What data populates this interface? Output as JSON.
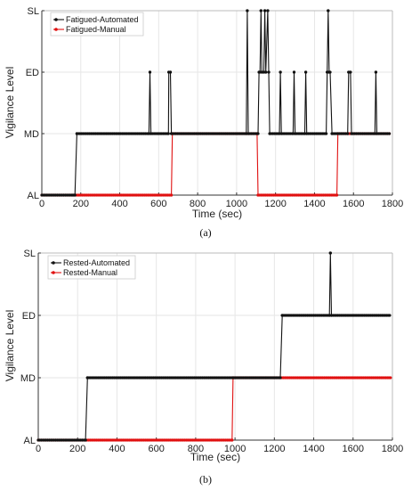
{
  "captions": [
    "(a)",
    "(b)"
  ],
  "colors": {
    "automated": "#111111",
    "manual": "#e01010",
    "grid": "#e6e6e6",
    "axis": "#333333"
  },
  "chart_data": [
    {
      "type": "line",
      "panel": "a",
      "xlabel": "Time (sec)",
      "ylabel": "Vigilance Level",
      "xlim": [
        0,
        1800
      ],
      "xticks": [
        0,
        200,
        400,
        600,
        800,
        1000,
        1200,
        1400,
        1600,
        1800
      ],
      "ycategories": [
        "AL",
        "MD",
        "ED",
        "SL"
      ],
      "ylim": [
        0,
        3
      ],
      "grid": true,
      "legend_position": "top-left",
      "series": [
        {
          "name": "Fatigued-Automated",
          "color": "#111111",
          "points": [
            [
              0,
              0
            ],
            [
              160,
              0
            ],
            [
              170,
              0
            ],
            [
              180,
              1
            ],
            [
              550,
              1
            ],
            [
              555,
              2
            ],
            [
              560,
              1
            ],
            [
              650,
              1
            ],
            [
              652,
              2
            ],
            [
              660,
              2
            ],
            [
              665,
              1
            ],
            [
              1050,
              1
            ],
            [
              1055,
              3
            ],
            [
              1060,
              1
            ],
            [
              1110,
              1
            ],
            [
              1115,
              2
            ],
            [
              1120,
              2
            ],
            [
              1125,
              3
            ],
            [
              1130,
              2
            ],
            [
              1140,
              2
            ],
            [
              1145,
              3
            ],
            [
              1150,
              2
            ],
            [
              1160,
              3
            ],
            [
              1165,
              2
            ],
            [
              1170,
              1
            ],
            [
              1220,
              1
            ],
            [
              1225,
              2
            ],
            [
              1230,
              1
            ],
            [
              1290,
              1
            ],
            [
              1295,
              2
            ],
            [
              1300,
              1
            ],
            [
              1350,
              1
            ],
            [
              1355,
              2
            ],
            [
              1360,
              1
            ],
            [
              1460,
              1
            ],
            [
              1465,
              2
            ],
            [
              1470,
              3
            ],
            [
              1475,
              2
            ],
            [
              1480,
              2
            ],
            [
              1490,
              1
            ],
            [
              1570,
              1
            ],
            [
              1575,
              2
            ],
            [
              1585,
              2
            ],
            [
              1590,
              1
            ],
            [
              1710,
              1
            ],
            [
              1715,
              2
            ],
            [
              1720,
              1
            ],
            [
              1790,
              1
            ]
          ]
        },
        {
          "name": "Fatigued-Manual",
          "color": "#e01010",
          "points": [
            [
              0,
              0
            ],
            [
              665,
              0
            ],
            [
              670,
              1
            ],
            [
              1105,
              1
            ],
            [
              1110,
              0
            ],
            [
              1515,
              0
            ],
            [
              1520,
              1
            ],
            [
              1790,
              1
            ]
          ]
        }
      ]
    },
    {
      "type": "line",
      "panel": "b",
      "xlabel": "Time (sec)",
      "ylabel": "Vigilance Level",
      "xlim": [
        0,
        1800
      ],
      "xticks": [
        0,
        200,
        400,
        600,
        800,
        1000,
        1200,
        1400,
        1600,
        1800
      ],
      "ycategories": [
        "AL",
        "MD",
        "ED",
        "SL"
      ],
      "ylim": [
        0,
        3
      ],
      "grid": true,
      "legend_position": "top-left",
      "series": [
        {
          "name": "Rested-Automated",
          "color": "#111111",
          "points": [
            [
              0,
              0
            ],
            [
              240,
              0
            ],
            [
              250,
              1
            ],
            [
              1230,
              1
            ],
            [
              1240,
              2
            ],
            [
              1480,
              2
            ],
            [
              1485,
              3
            ],
            [
              1490,
              2
            ],
            [
              1790,
              2
            ]
          ]
        },
        {
          "name": "Rested-Manual",
          "color": "#e01010",
          "points": [
            [
              0,
              0
            ],
            [
              985,
              0
            ],
            [
              990,
              1
            ],
            [
              1790,
              1
            ]
          ]
        }
      ]
    }
  ]
}
